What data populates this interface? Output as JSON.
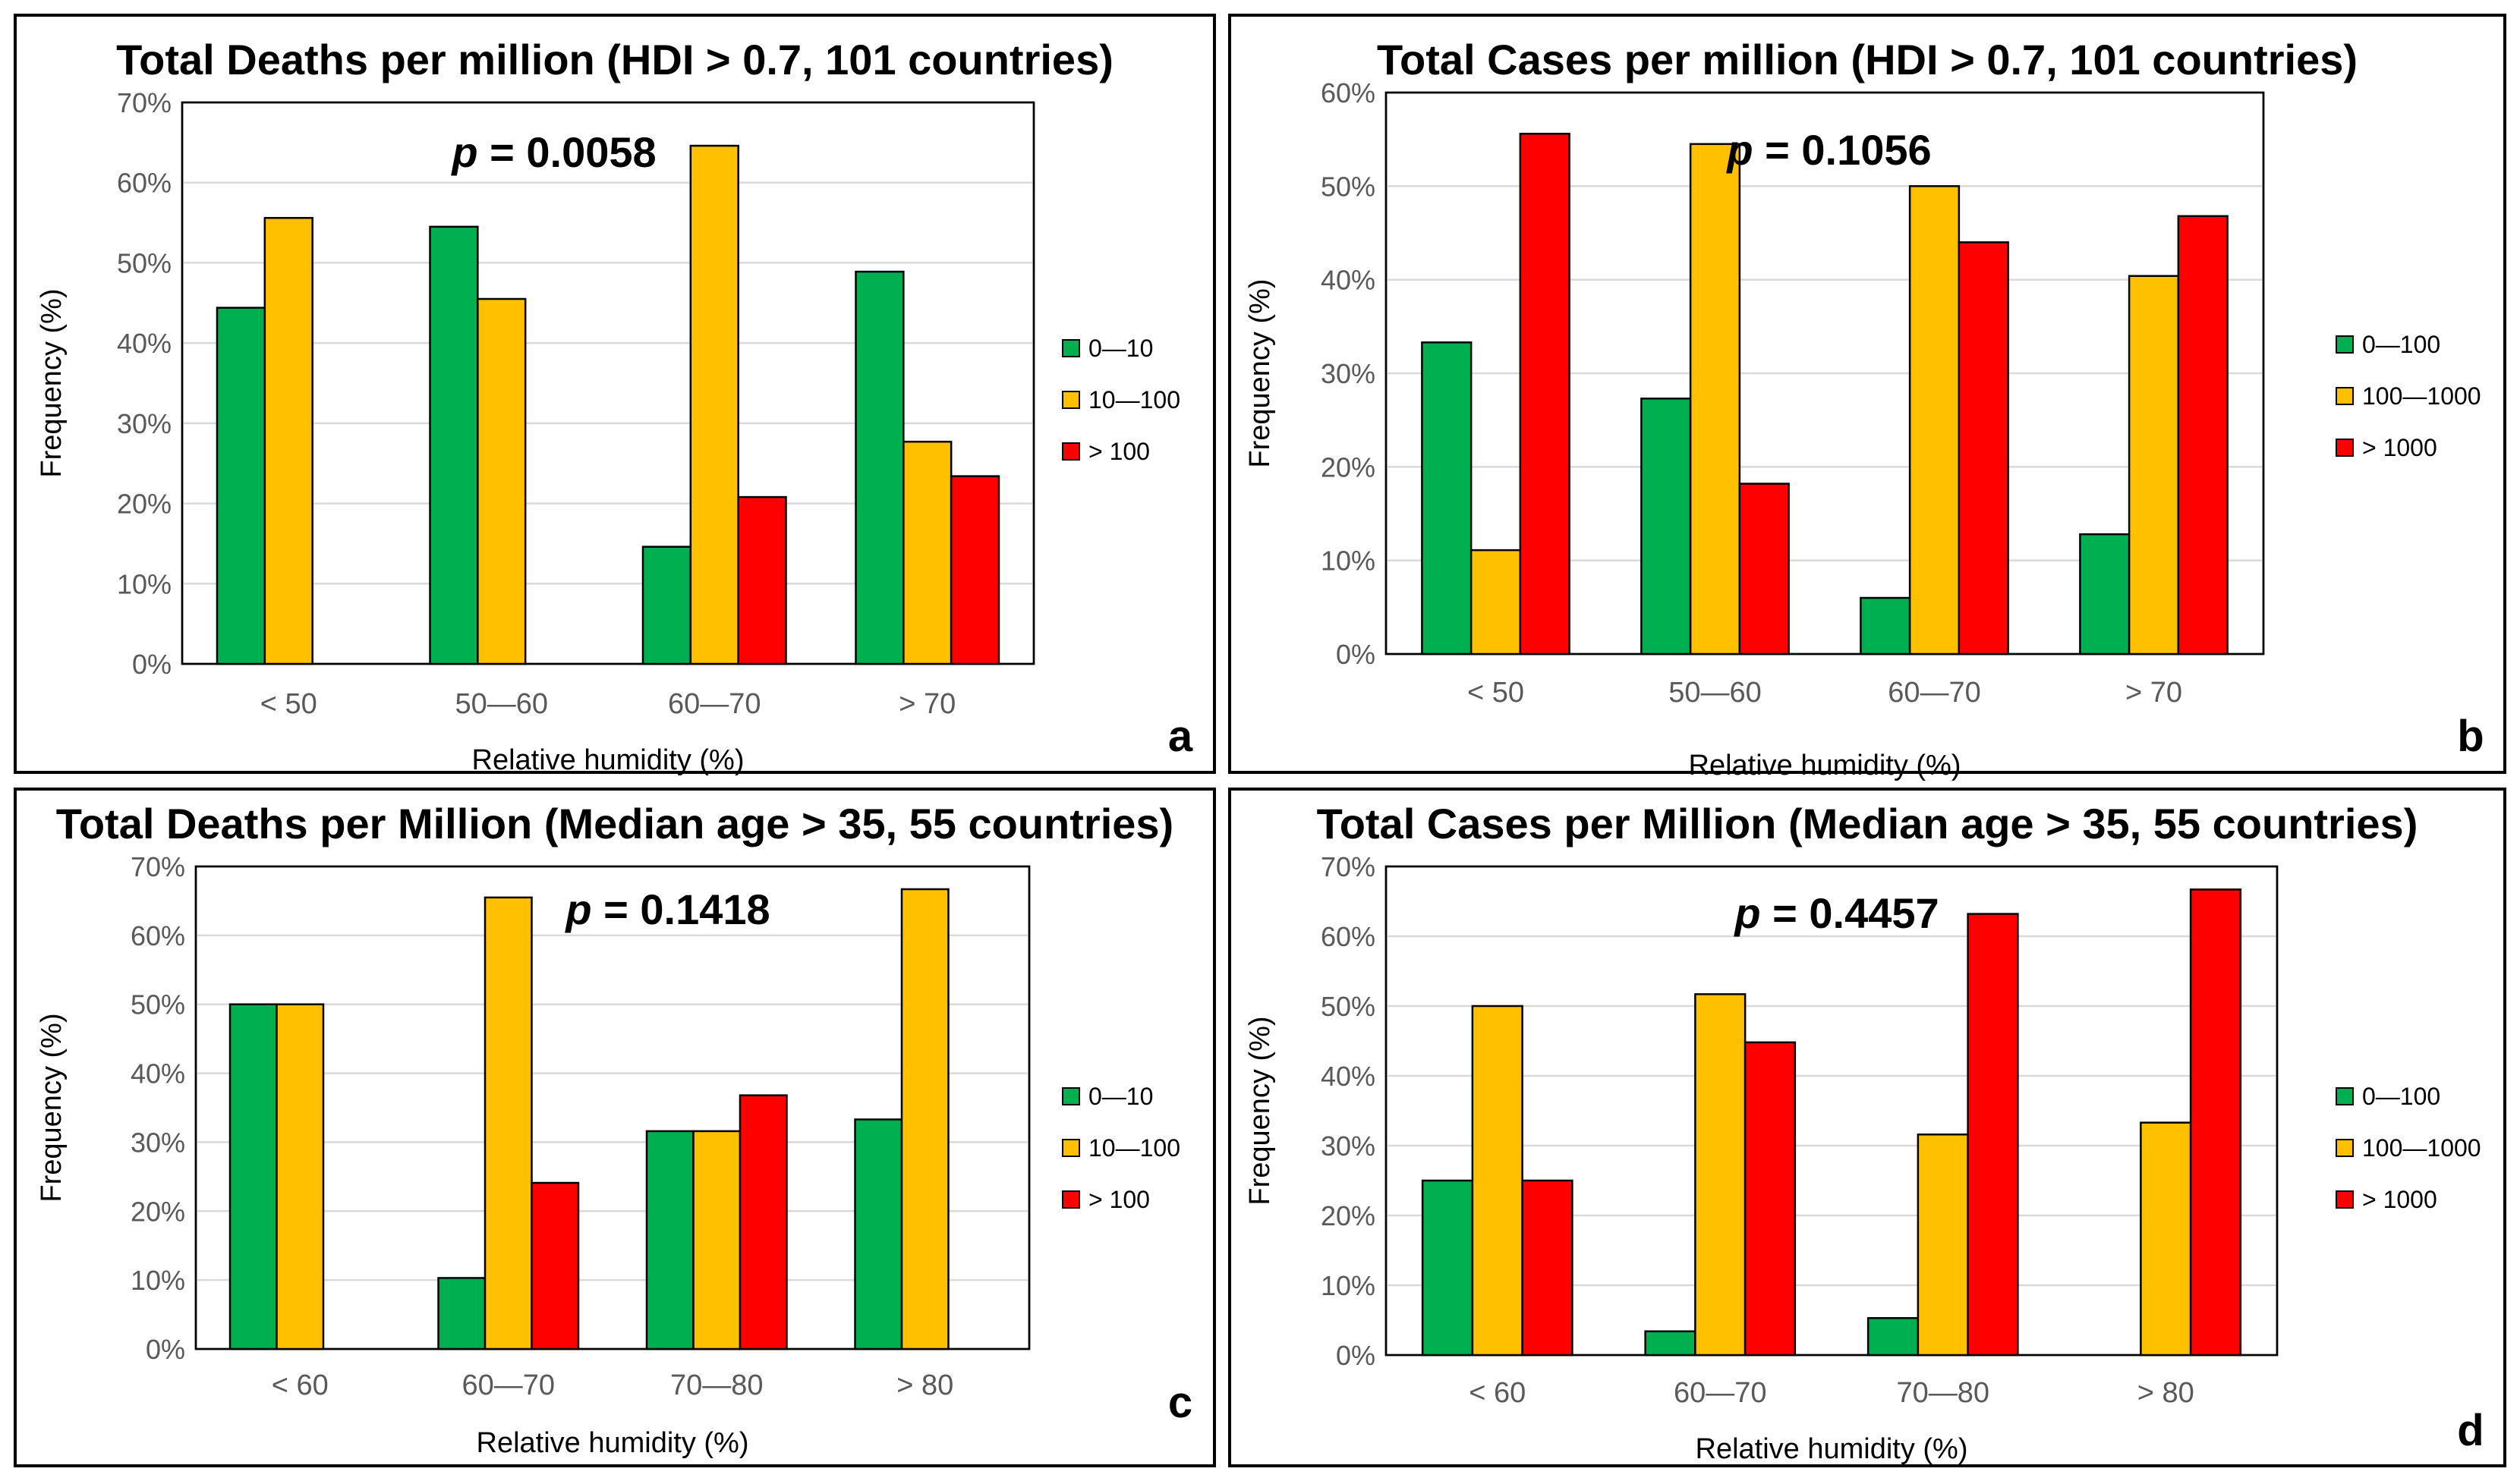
{
  "colors": {
    "green": "#00b050",
    "orange": "#ffc000",
    "red": "#ff0000"
  },
  "chart_data": [
    {
      "type": "bar",
      "panel": "a",
      "title": "Total Deaths per million (HDI > 0.7, 101 countries)",
      "p_label": "p",
      "p_value": " = 0.0058",
      "xlabel": "Relative humidity (%)",
      "ylabel": "Frequency (%)",
      "ylim": [
        0,
        70
      ],
      "yticks": [
        0,
        10,
        20,
        30,
        40,
        50,
        60,
        70
      ],
      "ytick_labels": [
        "0%",
        "10%",
        "20%",
        "30%",
        "40%",
        "50%",
        "60%",
        "70%"
      ],
      "categories": [
        "< 50",
        "50—60",
        "60—70",
        "> 70"
      ],
      "series": [
        {
          "name": "0—10",
          "color": "green",
          "values": [
            44.4,
            54.5,
            14.6,
            48.9
          ]
        },
        {
          "name": "10—100",
          "color": "orange",
          "values": [
            55.6,
            45.5,
            64.6,
            27.7
          ]
        },
        {
          "name": "> 100",
          "color": "red",
          "values": [
            0,
            0,
            20.8,
            23.4
          ]
        }
      ],
      "legend": "right",
      "grid": true
    },
    {
      "type": "bar",
      "panel": "b",
      "title": "Total Cases per million (HDI > 0.7, 101 countries)",
      "p_label": "p",
      "p_value": " = 0.1056",
      "xlabel": "Relative humidity (%)",
      "ylabel": "Frequency (%)",
      "ylim": [
        0,
        60
      ],
      "yticks": [
        0,
        10,
        20,
        30,
        40,
        50,
        60
      ],
      "ytick_labels": [
        "0%",
        "10%",
        "20%",
        "30%",
        "40%",
        "50%",
        "60%"
      ],
      "categories": [
        "< 50",
        "50—60",
        "60—70",
        "> 70"
      ],
      "series": [
        {
          "name": "0—100",
          "color": "green",
          "values": [
            33.3,
            27.3,
            6.0,
            12.8
          ]
        },
        {
          "name": "100—1000",
          "color": "orange",
          "values": [
            11.1,
            54.5,
            50.0,
            40.4
          ]
        },
        {
          "name": "> 1000",
          "color": "red",
          "values": [
            55.6,
            18.2,
            44.0,
            46.8
          ]
        }
      ],
      "legend": "right",
      "grid": true
    },
    {
      "type": "bar",
      "panel": "c",
      "title": "Total Deaths per Million (Median age > 35, 55 countries)",
      "p_label": "p",
      "p_value": " = 0.1418",
      "xlabel": "Relative humidity (%)",
      "ylabel": "Frequency (%)",
      "ylim": [
        0,
        70
      ],
      "yticks": [
        0,
        10,
        20,
        30,
        40,
        50,
        60,
        70
      ],
      "ytick_labels": [
        "0%",
        "10%",
        "20%",
        "30%",
        "40%",
        "50%",
        "60%",
        "70%"
      ],
      "categories": [
        "< 60",
        "60—70",
        "70—80",
        "> 80"
      ],
      "series": [
        {
          "name": "0—10",
          "color": "green",
          "values": [
            50.0,
            10.3,
            31.6,
            33.3
          ]
        },
        {
          "name": "10—100",
          "color": "orange",
          "values": [
            50.0,
            65.5,
            31.6,
            66.7
          ]
        },
        {
          "name": "> 100",
          "color": "red",
          "values": [
            0,
            24.1,
            36.8,
            0
          ]
        }
      ],
      "legend": "right",
      "grid": true
    },
    {
      "type": "bar",
      "panel": "d",
      "title": "Total Cases per Million (Median age > 35, 55 countries)",
      "p_label": "p",
      "p_value": " = 0.4457",
      "xlabel": "Relative humidity (%)",
      "ylabel": "Frequency (%)",
      "ylim": [
        0,
        70
      ],
      "yticks": [
        0,
        10,
        20,
        30,
        40,
        50,
        60,
        70
      ],
      "ytick_labels": [
        "0%",
        "10%",
        "20%",
        "30%",
        "40%",
        "50%",
        "60%",
        "70%"
      ],
      "categories": [
        "< 60",
        "60—70",
        "70—80",
        "> 80"
      ],
      "series": [
        {
          "name": "0—100",
          "color": "green",
          "values": [
            25.0,
            3.4,
            5.3,
            0
          ]
        },
        {
          "name": "100—1000",
          "color": "orange",
          "values": [
            50.0,
            51.7,
            31.6,
            33.3
          ]
        },
        {
          "name": "> 1000",
          "color": "red",
          "values": [
            25.0,
            44.8,
            63.2,
            66.7
          ]
        }
      ],
      "legend": "right",
      "grid": true
    }
  ]
}
